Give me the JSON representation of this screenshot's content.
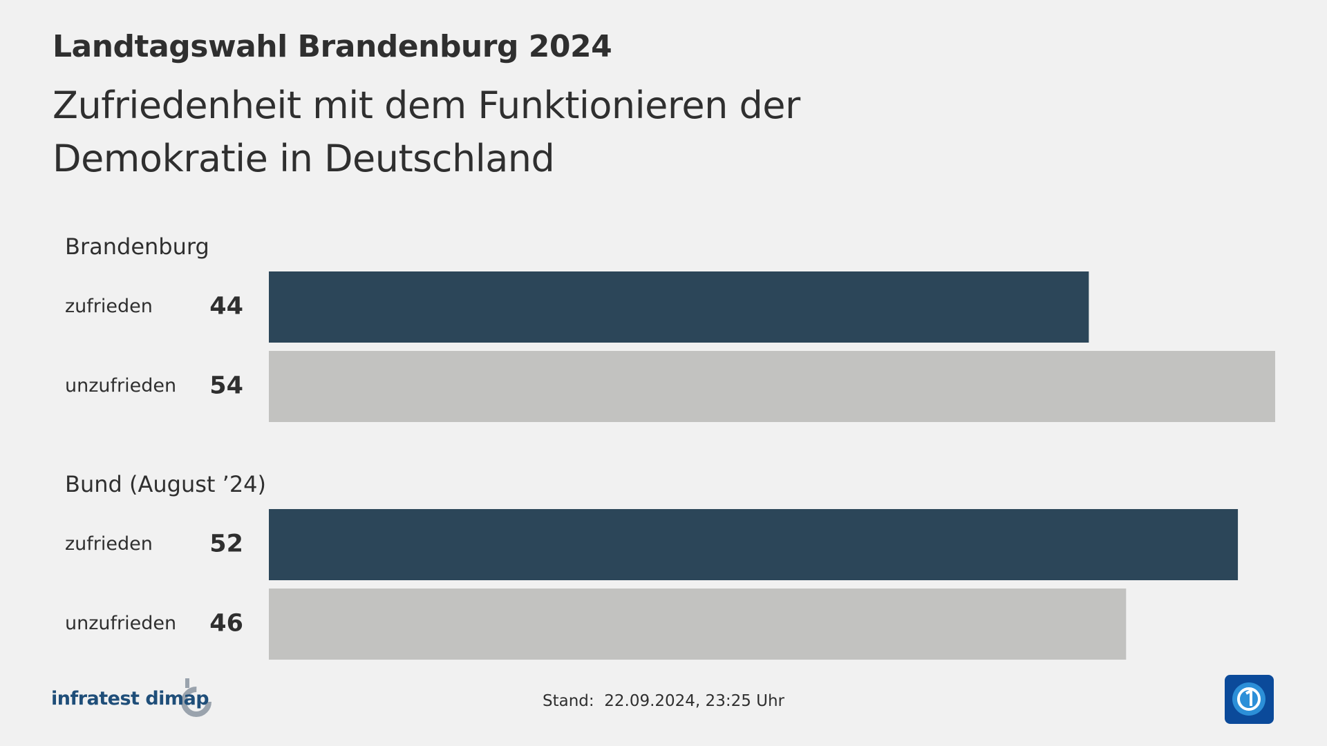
{
  "chart_data": {
    "type": "hbar",
    "title": "Landtagswahl Brandenburg 2024",
    "subtitle": "Zufriedenheit mit dem Funktionieren der Demokratie in Deutschland",
    "colors": [
      "#2c4659",
      "#c2c2c0"
    ],
    "groups": [
      {
        "name": "Brandenburg",
        "categories": [
          "zufrieden",
          "unzufrieden"
        ],
        "values": [
          44,
          54
        ]
      },
      {
        "name": "Bund (August ’24)",
        "categories": [
          "zufrieden",
          "unzufrieden"
        ],
        "values": [
          52,
          46
        ]
      }
    ],
    "source": "infratest dimap",
    "footer": "Stand:  22.09.2024, 23:25 Uhr"
  }
}
